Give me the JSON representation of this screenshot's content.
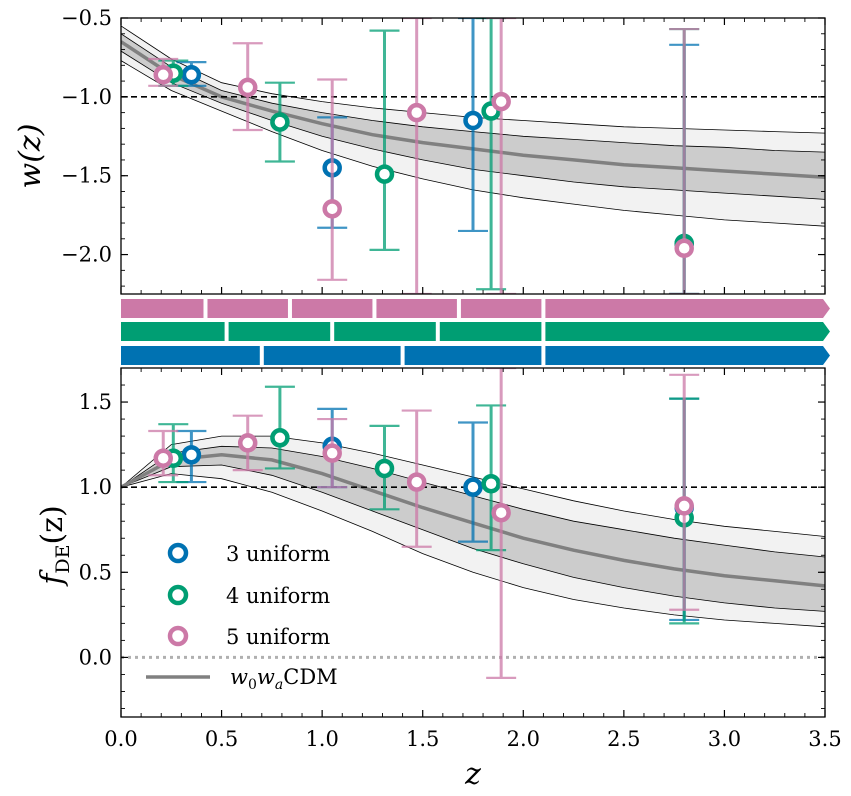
{
  "chart_data": [
    {
      "type": "scatter",
      "panel": "top",
      "ylabel": "w(z)",
      "xlabel": "",
      "xlim": [
        0.0,
        3.5
      ],
      "ylim": [
        -2.25,
        -0.5
      ],
      "yticks": [
        -2.0,
        -1.5,
        -1.0,
        -0.5
      ],
      "ytick_labels": [
        "−2.0",
        "−1.5",
        "−1.0",
        "−0.5"
      ],
      "reference_line": -1.0,
      "band_curve": {
        "z": [
          0.0,
          0.25,
          0.5,
          0.75,
          1.0,
          1.25,
          1.5,
          1.75,
          2.0,
          2.25,
          2.5,
          2.75,
          3.0,
          3.25,
          3.5
        ],
        "mean": [
          -0.65,
          -0.86,
          -1.0,
          -1.09,
          -1.17,
          -1.24,
          -1.29,
          -1.33,
          -1.37,
          -1.4,
          -1.43,
          -1.45,
          -1.47,
          -1.49,
          -1.51
        ],
        "lo1": [
          -0.71,
          -0.91,
          -1.04,
          -1.15,
          -1.25,
          -1.33,
          -1.4,
          -1.46,
          -1.5,
          -1.54,
          -1.57,
          -1.59,
          -1.61,
          -1.63,
          -1.65
        ],
        "hi1": [
          -0.6,
          -0.81,
          -0.96,
          -1.04,
          -1.1,
          -1.15,
          -1.19,
          -1.22,
          -1.25,
          -1.27,
          -1.29,
          -1.31,
          -1.32,
          -1.34,
          -1.35
        ],
        "lo2": [
          -0.77,
          -0.96,
          -1.09,
          -1.22,
          -1.34,
          -1.44,
          -1.52,
          -1.59,
          -1.64,
          -1.68,
          -1.72,
          -1.75,
          -1.78,
          -1.8,
          -1.82
        ],
        "hi2": [
          -0.55,
          -0.76,
          -0.91,
          -0.98,
          -1.03,
          -1.07,
          -1.1,
          -1.13,
          -1.15,
          -1.17,
          -1.19,
          -1.2,
          -1.21,
          -1.22,
          -1.23
        ]
      },
      "series": [
        {
          "name": "3 uniform",
          "color": "#0072b2",
          "z": [
            0.35,
            1.05,
            1.75,
            2.8
          ],
          "y": [
            -0.86,
            -1.45,
            -1.15,
            -1.93
          ],
          "lo": [
            -0.93,
            -1.83,
            -1.85,
            -2.25
          ],
          "hi": [
            -0.78,
            -1.13,
            -0.5,
            -0.67
          ]
        },
        {
          "name": "4 uniform",
          "color": "#009e73",
          "z": [
            0.26,
            0.79,
            1.31,
            1.84,
            2.8
          ],
          "y": [
            -0.85,
            -1.16,
            -1.49,
            -1.09,
            -1.93
          ],
          "lo": [
            -0.93,
            -1.41,
            -1.97,
            -2.22,
            -2.25
          ],
          "hi": [
            -0.77,
            -0.91,
            -0.58,
            -0.5,
            -0.57
          ]
        },
        {
          "name": "5 uniform",
          "color": "#cc79a7",
          "z": [
            0.21,
            0.63,
            1.05,
            1.47,
            1.89,
            2.8
          ],
          "y": [
            -0.86,
            -0.94,
            -1.71,
            -1.1,
            -1.03,
            -1.96
          ],
          "lo": [
            -0.93,
            -1.21,
            -2.16,
            -2.25,
            -2.25,
            -2.25
          ],
          "hi": [
            -0.76,
            -0.66,
            -0.89,
            -0.5,
            -0.5,
            -0.57
          ]
        }
      ]
    },
    {
      "type": "scatter",
      "panel": "bottom",
      "ylabel": "f",
      "ylabel_sub": "DE",
      "ylabel_suffix": "(z)",
      "xlabel": "z",
      "xlim": [
        0.0,
        3.5
      ],
      "ylim": [
        -0.35,
        1.7
      ],
      "xticks": [
        0.0,
        0.5,
        1.0,
        1.5,
        2.0,
        2.5,
        3.0,
        3.5
      ],
      "xtick_labels": [
        "0.0",
        "0.5",
        "1.0",
        "1.5",
        "2.0",
        "2.5",
        "3.0",
        "3.5"
      ],
      "yticks": [
        0.0,
        0.5,
        1.0,
        1.5
      ],
      "ytick_labels": [
        "0.0",
        "0.5",
        "1.0",
        "1.5"
      ],
      "reference_line": 1.0,
      "zero_line": 0.0,
      "band_curve": {
        "z": [
          0.0,
          0.25,
          0.5,
          0.75,
          1.0,
          1.25,
          1.5,
          1.75,
          2.0,
          2.25,
          2.5,
          2.75,
          3.0,
          3.25,
          3.5
        ],
        "mean": [
          1.0,
          1.16,
          1.19,
          1.16,
          1.08,
          0.98,
          0.88,
          0.79,
          0.7,
          0.63,
          0.57,
          0.52,
          0.48,
          0.45,
          0.42
        ],
        "lo1": [
          1.0,
          1.12,
          1.13,
          1.07,
          0.97,
          0.86,
          0.75,
          0.64,
          0.55,
          0.47,
          0.41,
          0.36,
          0.32,
          0.29,
          0.27
        ],
        "hi1": [
          1.0,
          1.2,
          1.24,
          1.23,
          1.18,
          1.11,
          1.03,
          0.95,
          0.87,
          0.8,
          0.75,
          0.7,
          0.66,
          0.62,
          0.59
        ],
        "lo2": [
          1.0,
          1.08,
          1.05,
          0.97,
          0.86,
          0.74,
          0.61,
          0.5,
          0.41,
          0.34,
          0.29,
          0.25,
          0.22,
          0.2,
          0.18
        ],
        "hi2": [
          1.0,
          1.25,
          1.3,
          1.3,
          1.26,
          1.2,
          1.13,
          1.06,
          0.99,
          0.92,
          0.86,
          0.81,
          0.77,
          0.74,
          0.71
        ]
      },
      "series": [
        {
          "name": "3 uniform",
          "color": "#0072b2",
          "z": [
            0.35,
            1.05,
            1.75,
            2.8
          ],
          "y": [
            1.19,
            1.24,
            1.0,
            0.88
          ],
          "lo": [
            1.03,
            1.0,
            0.68,
            0.22
          ],
          "hi": [
            1.33,
            1.46,
            1.38,
            1.52
          ]
        },
        {
          "name": "4 uniform",
          "color": "#009e73",
          "z": [
            0.26,
            0.79,
            1.31,
            1.84,
            2.8
          ],
          "y": [
            1.17,
            1.29,
            1.11,
            1.02,
            0.82
          ],
          "lo": [
            1.03,
            1.11,
            0.87,
            0.63,
            0.2
          ],
          "hi": [
            1.37,
            1.59,
            1.36,
            1.48,
            1.52
          ]
        },
        {
          "name": "5 uniform",
          "color": "#cc79a7",
          "z": [
            0.21,
            0.63,
            1.05,
            1.47,
            1.89,
            2.8
          ],
          "y": [
            1.17,
            1.26,
            1.2,
            1.03,
            0.85,
            0.89
          ],
          "lo": [
            1.07,
            1.1,
            1.0,
            0.65,
            -0.12,
            0.28
          ],
          "hi": [
            1.33,
            1.42,
            1.4,
            1.45,
            1.7,
            1.66
          ]
        }
      ]
    }
  ],
  "bin_strips": [
    {
      "name": "5 uniform",
      "color": "#cc79a7",
      "edges": [
        0.0,
        0.42,
        0.84,
        1.26,
        1.68,
        2.1,
        3.5
      ]
    },
    {
      "name": "4 uniform",
      "color": "#009e73",
      "edges": [
        0.0,
        0.525,
        1.05,
        1.575,
        2.1,
        3.5
      ]
    },
    {
      "name": "3 uniform",
      "color": "#0072b2",
      "edges": [
        0.0,
        0.7,
        1.4,
        2.1,
        3.5
      ]
    }
  ],
  "legend": {
    "placement": "lower-left",
    "entries": [
      {
        "label": "3 uniform",
        "color": "#0072b2",
        "kind": "marker"
      },
      {
        "label": "4 uniform",
        "color": "#009e73",
        "kind": "marker"
      },
      {
        "label": "5 uniform",
        "color": "#cc79a7",
        "kind": "marker"
      },
      {
        "label_main": "w",
        "label_sub0": "0",
        "label_mid": "w",
        "label_sub1": "a",
        "label_tail": "CDM",
        "color": "#808080",
        "kind": "line"
      }
    ]
  },
  "colors": {
    "band_outer": "#f2f2f2",
    "band_inner": "#cccccc",
    "mean_line": "#808080",
    "zero_line": "#b0b0b0"
  }
}
